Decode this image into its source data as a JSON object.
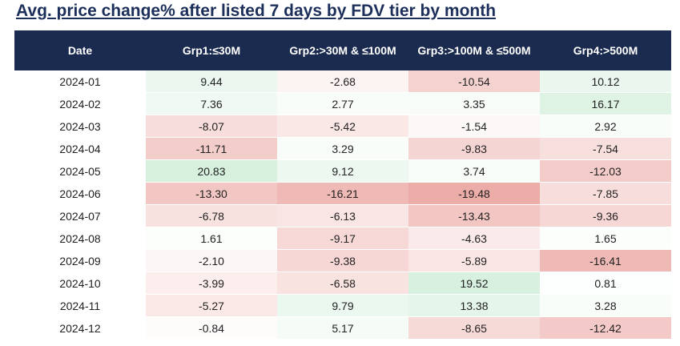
{
  "header": {
    "title": "Avg. price change% after listed 7 days by FDV tier by month"
  },
  "table": {
    "columns": [
      "Date",
      "Grp1:≤30M",
      "Grp2:>30M & ≤100M",
      "Grp3:>100M & ≤500M",
      "Grp4:>500M"
    ],
    "rows": [
      [
        "2024-01",
        "9.44",
        "-2.68",
        "-10.54",
        "10.12"
      ],
      [
        "2024-02",
        "7.36",
        "2.77",
        "3.35",
        "16.17"
      ],
      [
        "2024-03",
        "-8.07",
        "-5.42",
        "-1.54",
        "2.92"
      ],
      [
        "2024-04",
        "-11.71",
        "3.29",
        "-9.83",
        "-7.54"
      ],
      [
        "2024-05",
        "20.83",
        "9.12",
        "3.74",
        "-12.03"
      ],
      [
        "2024-06",
        "-13.30",
        "-16.21",
        "-19.48",
        "-7.85"
      ],
      [
        "2024-07",
        "-6.78",
        "-6.13",
        "-13.43",
        "-9.36"
      ],
      [
        "2024-08",
        "1.61",
        "-9.17",
        "-4.63",
        "1.65"
      ],
      [
        "2024-09",
        "-2.10",
        "-9.38",
        "-5.89",
        "-16.41"
      ],
      [
        "2024-10",
        "-3.99",
        "-6.58",
        "19.52",
        "0.81"
      ],
      [
        "2024-11",
        "-5.27",
        "9.79",
        "13.38",
        "3.28"
      ],
      [
        "2024-12",
        "-0.84",
        "5.17",
        "-8.65",
        "-12.42"
      ]
    ]
  }
}
